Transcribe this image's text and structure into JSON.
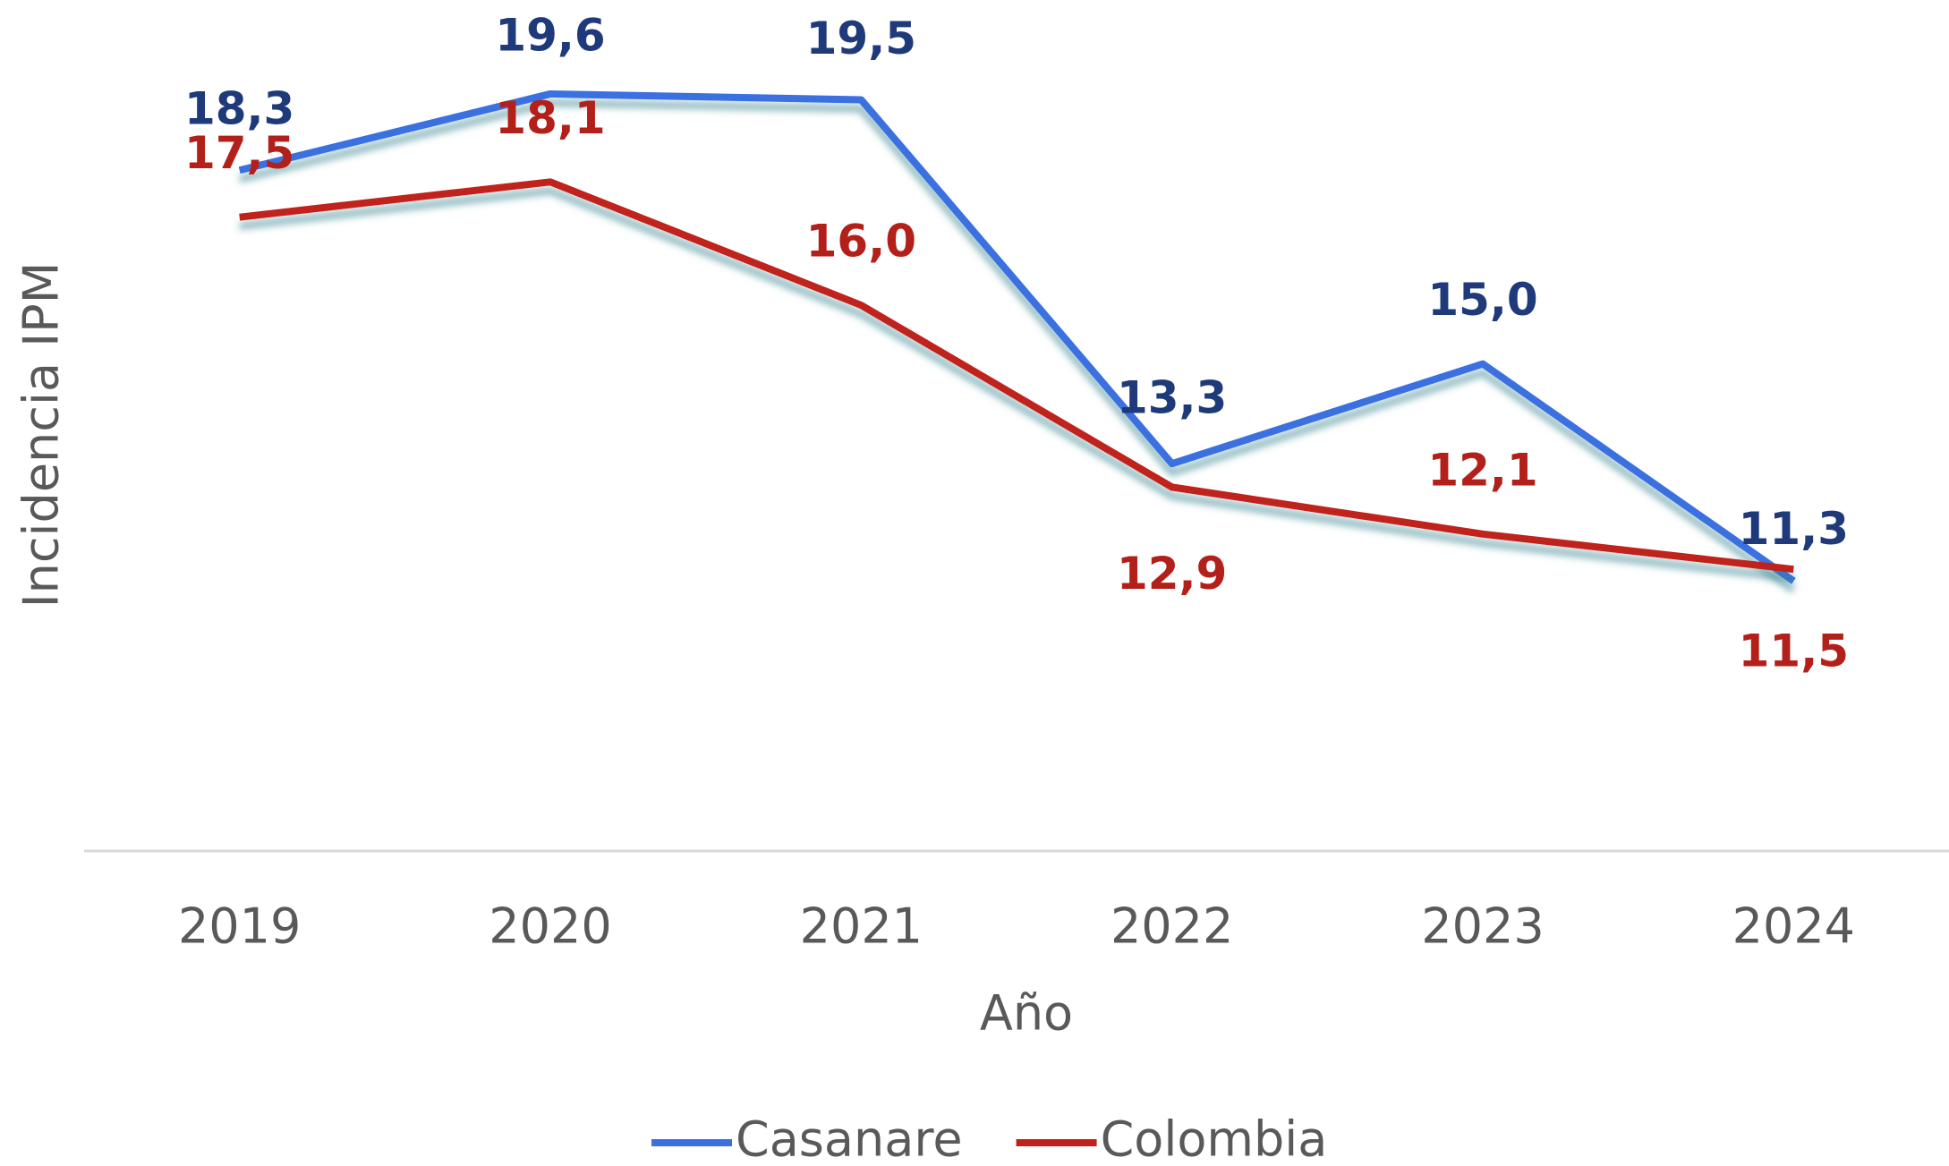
{
  "chart_data": {
    "type": "line",
    "x_label": "Año",
    "y_label": "Incidencia IPM",
    "categories": [
      "2019",
      "2020",
      "2021",
      "2022",
      "2023",
      "2024"
    ],
    "series": [
      {
        "name": "Casanare",
        "color": "#3a6fe0",
        "label_color": "#1f3a7a",
        "values": [
          18.3,
          19.6,
          19.5,
          13.3,
          15.0,
          11.3
        ],
        "value_labels": [
          "18,3",
          "19,6",
          "19,5",
          "13,3",
          "15,0",
          "11,3"
        ]
      },
      {
        "name": "Colombia",
        "color": "#c0221b",
        "label_color": "#b3201a",
        "values": [
          17.5,
          18.1,
          16.0,
          12.9,
          12.1,
          11.5
        ],
        "value_labels": [
          "17,5",
          "18,1",
          "16,0",
          "12,9",
          "12,1",
          "11,5"
        ]
      }
    ],
    "ylim": [
      6.7,
      21.2
    ],
    "legend": "bottom"
  }
}
